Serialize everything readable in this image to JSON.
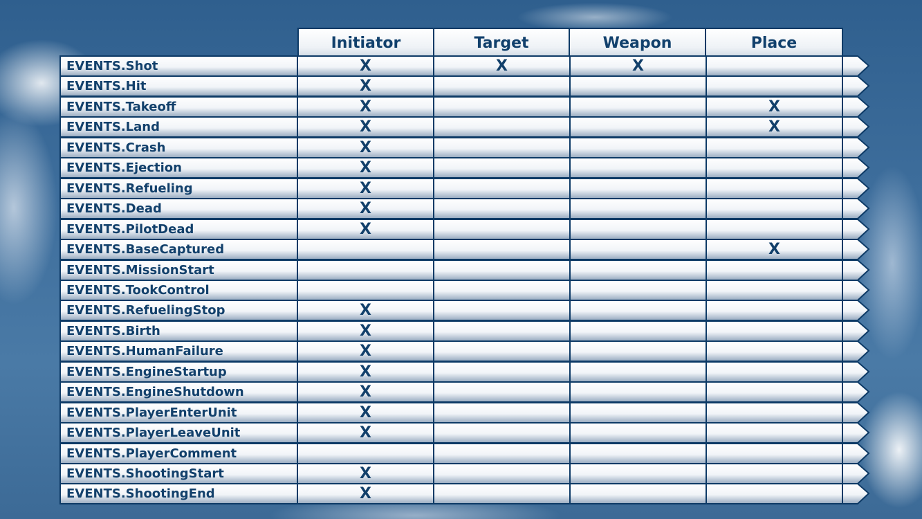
{
  "columns": [
    "Initiator",
    "Target",
    "Weapon",
    "Place"
  ],
  "colors": {
    "border": "#0d3a66",
    "text": "#12406b",
    "sky": "#3f6f9d"
  },
  "mark_symbol": "X",
  "rows": [
    {
      "label": "EVENTS.Shot",
      "marks": [
        true,
        true,
        true,
        false
      ]
    },
    {
      "label": "EVENTS.Hit",
      "marks": [
        true,
        false,
        false,
        false
      ]
    },
    {
      "label": "EVENTS.Takeoff",
      "marks": [
        true,
        false,
        false,
        true
      ]
    },
    {
      "label": "EVENTS.Land",
      "marks": [
        true,
        false,
        false,
        true
      ]
    },
    {
      "label": "EVENTS.Crash",
      "marks": [
        true,
        false,
        false,
        false
      ]
    },
    {
      "label": "EVENTS.Ejection",
      "marks": [
        true,
        false,
        false,
        false
      ]
    },
    {
      "label": "EVENTS.Refueling",
      "marks": [
        true,
        false,
        false,
        false
      ]
    },
    {
      "label": "EVENTS.Dead",
      "marks": [
        true,
        false,
        false,
        false
      ]
    },
    {
      "label": "EVENTS.PilotDead",
      "marks": [
        true,
        false,
        false,
        false
      ]
    },
    {
      "label": "EVENTS.BaseCaptured",
      "marks": [
        false,
        false,
        false,
        true
      ]
    },
    {
      "label": "EVENTS.MissionStart",
      "marks": [
        false,
        false,
        false,
        false
      ]
    },
    {
      "label": "EVENTS.TookControl",
      "marks": [
        false,
        false,
        false,
        false
      ]
    },
    {
      "label": "EVENTS.RefuelingStop",
      "marks": [
        true,
        false,
        false,
        false
      ]
    },
    {
      "label": "EVENTS.Birth",
      "marks": [
        true,
        false,
        false,
        false
      ]
    },
    {
      "label": "EVENTS.HumanFailure",
      "marks": [
        true,
        false,
        false,
        false
      ]
    },
    {
      "label": "EVENTS.EngineStartup",
      "marks": [
        true,
        false,
        false,
        false
      ]
    },
    {
      "label": "EVENTS.EngineShutdown",
      "marks": [
        true,
        false,
        false,
        false
      ]
    },
    {
      "label": "EVENTS.PlayerEnterUnit",
      "marks": [
        true,
        false,
        false,
        false
      ]
    },
    {
      "label": "EVENTS.PlayerLeaveUnit",
      "marks": [
        true,
        false,
        false,
        false
      ]
    },
    {
      "label": "EVENTS.PlayerComment",
      "marks": [
        false,
        false,
        false,
        false
      ]
    },
    {
      "label": "EVENTS.ShootingStart",
      "marks": [
        true,
        false,
        false,
        false
      ]
    },
    {
      "label": "EVENTS.ShootingEnd",
      "marks": [
        true,
        false,
        false,
        false
      ]
    }
  ]
}
